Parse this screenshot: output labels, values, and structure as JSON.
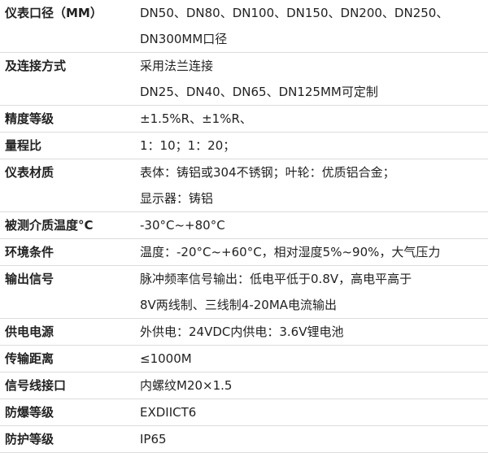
{
  "rows": [
    {
      "label": "仪表口径（MM）",
      "lines": [
        "DN50、DN80、DN100、DN150、DN200、DN250、",
        "DN300MM口径"
      ]
    },
    {
      "label": "及连接方式",
      "lines": [
        "采用法兰连接",
        "DN25、DN40、DN65、DN125MM可定制"
      ]
    },
    {
      "label": "精度等级",
      "lines": [
        "±1.5%R、±1%R、"
      ]
    },
    {
      "label": "量程比",
      "lines": [
        "1：10；1：20；"
      ]
    },
    {
      "label": "仪表材质",
      "lines": [
        "表体：铸铝或304不锈钢；叶轮：优质铝合金；",
        "显示器：铸铝"
      ]
    },
    {
      "label": "被测介质温度°C",
      "lines": [
        "-30°C~+80°C"
      ]
    },
    {
      "label": "环境条件",
      "lines": [
        "温度：-20°C~+60°C，相对湿度5%~90%，大气压力"
      ]
    },
    {
      "label": "输出信号",
      "lines": [
        "脉冲频率信号输出：低电平低于0.8V，高电平高于",
        "8V两线制、三线制4-20MA电流输出"
      ]
    },
    {
      "label": "供电电源",
      "lines": [
        "外供电：24VDC内供电：3.6V锂电池"
      ]
    },
    {
      "label": "传输距离",
      "lines": [
        "≤1000M"
      ]
    },
    {
      "label": "信号线接口",
      "lines": [
        "内螺纹M20×1.5"
      ]
    },
    {
      "label": "防爆等级",
      "lines": [
        "EXDIICT6"
      ]
    },
    {
      "label": "防护等级",
      "lines": [
        "IP65"
      ]
    }
  ]
}
